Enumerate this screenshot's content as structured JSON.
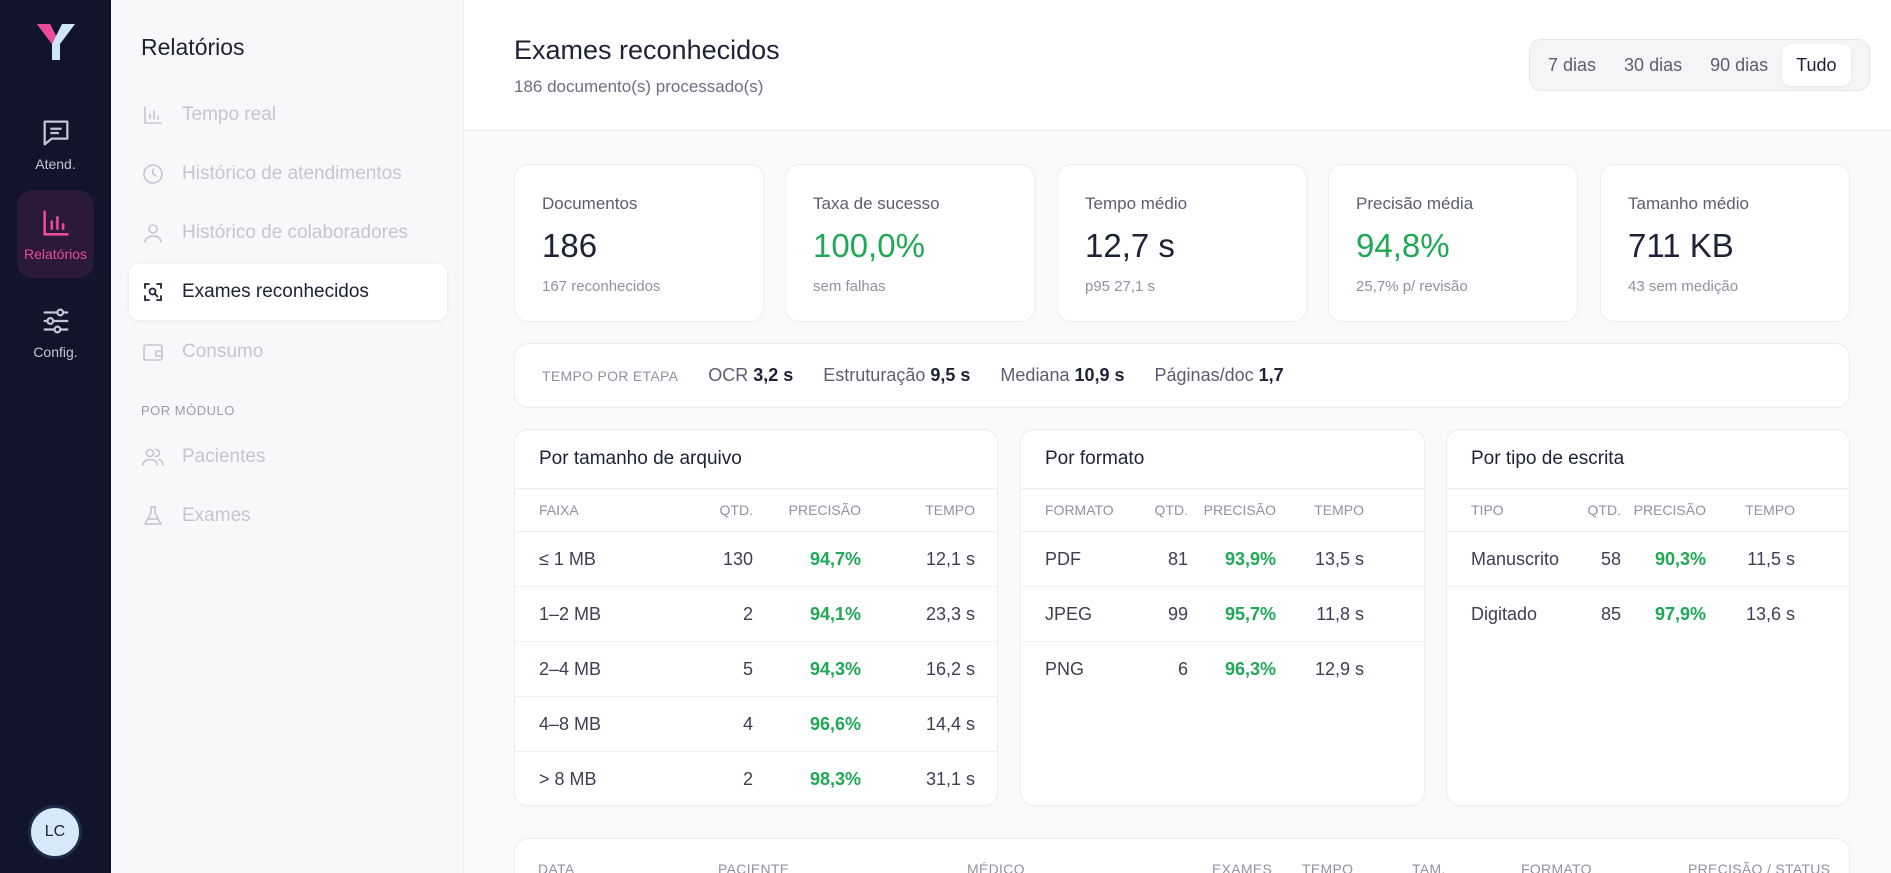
{
  "rail": {
    "items": [
      {
        "label": "Atend.",
        "icon": "chat-icon"
      },
      {
        "label": "Relatórios",
        "icon": "bar-chart-icon"
      },
      {
        "label": "Config.",
        "icon": "sliders-icon"
      }
    ],
    "avatar": "LC",
    "accent": "#ec4b9a"
  },
  "subnav": {
    "title": "Relatórios",
    "items": [
      {
        "label": "Tempo real",
        "icon": "bar-chart-icon"
      },
      {
        "label": "Histórico de atendimentos",
        "icon": "clock-icon"
      },
      {
        "label": "Histórico de colaboradores",
        "icon": "user-icon"
      },
      {
        "label": "Exames reconhecidos",
        "icon": "scan-icon"
      },
      {
        "label": "Consumo",
        "icon": "wallet-icon"
      }
    ],
    "section_label": "POR MÓDULO",
    "module_items": [
      {
        "label": "Pacientes",
        "icon": "users-icon"
      },
      {
        "label": "Exames",
        "icon": "flask-icon"
      }
    ]
  },
  "header": {
    "title": "Exames reconhecidos",
    "subtitle": "186 documento(s) processado(s)",
    "ranges": [
      "7 dias",
      "30 dias",
      "90 dias",
      "Tudo"
    ],
    "selected_range": "Tudo"
  },
  "kpis": [
    {
      "label": "Documentos",
      "value": "186",
      "note": "167 reconhecidos"
    },
    {
      "label": "Taxa de sucesso",
      "value": "100,0%",
      "note": "sem falhas"
    },
    {
      "label": "Tempo médio",
      "value": "12,7 s",
      "note": "p95 27,1 s"
    },
    {
      "label": "Precisão média",
      "value": "94,8%",
      "note": "25,7% p/ revisão"
    },
    {
      "label": "Tamanho médio",
      "value": "711 KB",
      "note": "43 sem medição"
    }
  ],
  "stage": {
    "label": "TEMPO POR ETAPA",
    "items": [
      {
        "name": "OCR",
        "value": "3,2 s"
      },
      {
        "name": "Estruturação",
        "value": "9,5 s"
      },
      {
        "name": "Mediana",
        "value": "10,9 s"
      },
      {
        "name": "Páginas/doc",
        "value": "1,7"
      }
    ]
  },
  "tables": {
    "size": {
      "title": "Por tamanho de arquivo",
      "headers": [
        "FAIXA",
        "QTD.",
        "PRECISÃO",
        "TEMPO"
      ],
      "rows": [
        [
          "≤ 1 MB",
          "130",
          "94,7%",
          "12,1 s"
        ],
        [
          "1–2 MB",
          "2",
          "94,1%",
          "23,3 s"
        ],
        [
          "2–4 MB",
          "5",
          "94,3%",
          "16,2 s"
        ],
        [
          "4–8 MB",
          "4",
          "96,6%",
          "14,4 s"
        ],
        [
          "> 8 MB",
          "2",
          "98,3%",
          "31,1 s"
        ]
      ]
    },
    "format": {
      "title": "Por formato",
      "headers": [
        "FORMATO",
        "QTD.",
        "PRECISÃO",
        "TEMPO"
      ],
      "rows": [
        [
          "PDF",
          "81",
          "93,9%",
          "13,5 s"
        ],
        [
          "JPEG",
          "99",
          "95,7%",
          "11,8 s"
        ],
        [
          "PNG",
          "6",
          "96,3%",
          "12,9 s"
        ]
      ]
    },
    "writing": {
      "title": "Por tipo de escrita",
      "headers": [
        "TIPO",
        "QTD.",
        "PRECISÃO",
        "TEMPO"
      ],
      "rows": [
        [
          "Manuscrito",
          "58",
          "90,3%",
          "11,5 s"
        ],
        [
          "Digitado",
          "85",
          "97,9%",
          "13,6 s"
        ]
      ]
    }
  },
  "documents_table": {
    "headers": [
      "DATA",
      "PACIENTE",
      "MÉDICO",
      "EXAMES",
      "TEMPO",
      "TAM.",
      "FORMATO",
      "PRECISÃO / STATUS"
    ]
  }
}
